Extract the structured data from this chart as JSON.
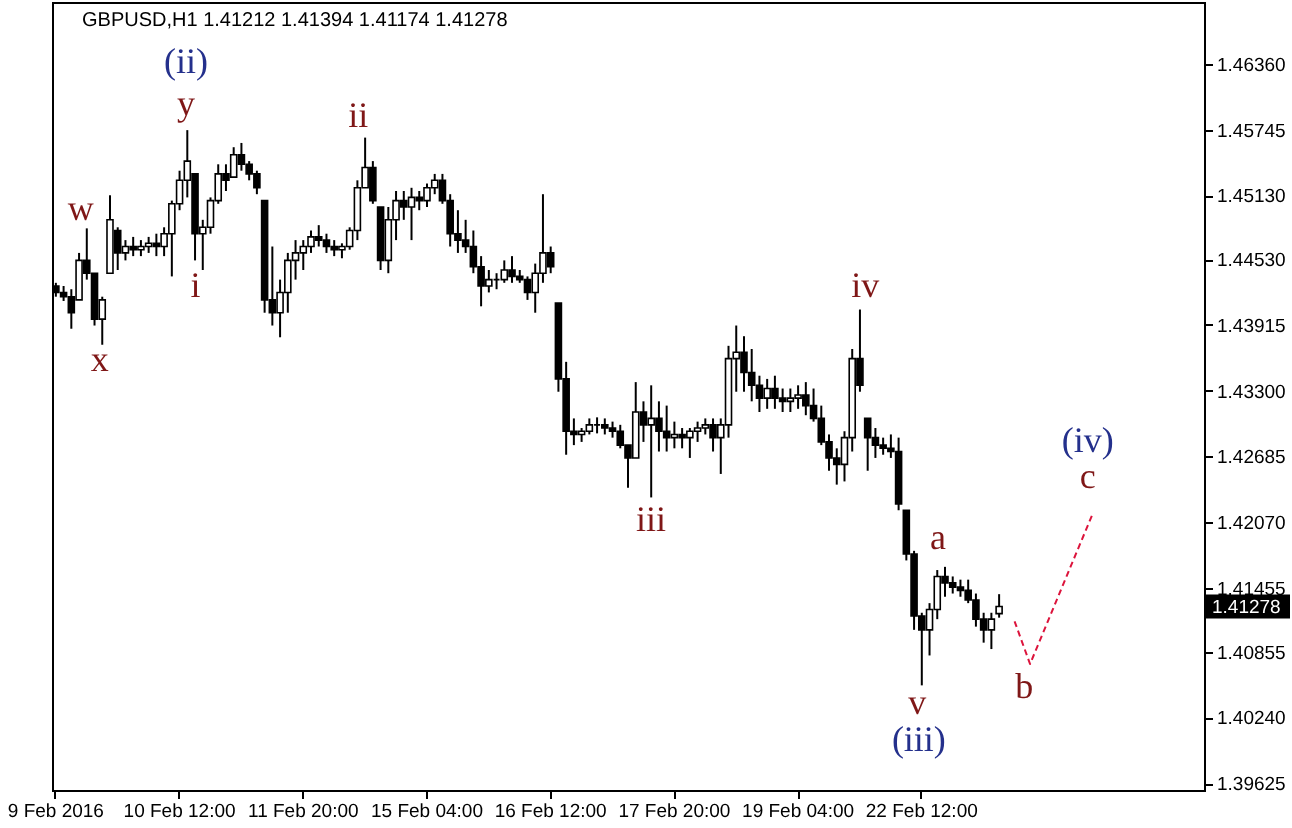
{
  "chart_data": {
    "type": "candlestick",
    "title": "GBPUSD,H1 1.41212 1.41394 1.41174 1.41278",
    "color": "#000000",
    "categories": [
      "9 Feb 2016",
      null,
      null,
      null,
      null,
      null,
      null,
      null,
      null,
      null,
      null,
      null,
      null,
      null,
      null,
      null,
      "10 Feb 12:00",
      null,
      null,
      null,
      null,
      null,
      null,
      null,
      null,
      null,
      null,
      null,
      null,
      null,
      null,
      null,
      "11 Feb 20:00",
      null,
      null,
      null,
      null,
      null,
      null,
      null,
      null,
      null,
      null,
      null,
      null,
      null,
      null,
      null,
      "15 Feb 04:00",
      null,
      null,
      null,
      null,
      null,
      null,
      null,
      null,
      null,
      null,
      null,
      null,
      null,
      null,
      null,
      "16 Feb 12:00",
      null,
      null,
      null,
      null,
      null,
      null,
      null,
      null,
      null,
      null,
      null,
      null,
      null,
      null,
      null,
      "17 Feb 20:00",
      null,
      null,
      null,
      null,
      null,
      null,
      null,
      null,
      null,
      null,
      null,
      null,
      null,
      null,
      null,
      "19 Feb 04:00",
      null,
      null,
      null,
      null,
      null,
      null,
      null,
      null,
      null,
      null,
      null,
      null,
      null,
      null,
      null,
      "22 Feb 12:00",
      null,
      null,
      null,
      null,
      null,
      null,
      null,
      null,
      null,
      null,
      null,
      null,
      null,
      null,
      null,
      null,
      null,
      null,
      null,
      null,
      null,
      null,
      null,
      null,
      null,
      null,
      null,
      null,
      null,
      null,
      null,
      null,
      null,
      null,
      null,
      null
    ],
    "ohlc": [
      [
        1.4428,
        1.4431,
        1.4418,
        1.4422
      ],
      [
        1.4422,
        1.4428,
        1.4414,
        1.4418
      ],
      [
        1.4418,
        1.4425,
        1.4388,
        1.4403
      ],
      [
        1.4415,
        1.4459,
        1.4415,
        1.4452
      ],
      [
        1.4452,
        1.4482,
        1.4434,
        1.444
      ],
      [
        1.444,
        1.444,
        1.4391,
        1.4397
      ],
      [
        1.4397,
        1.4418,
        1.4373,
        1.4415
      ],
      [
        1.444,
        1.4513,
        1.444,
        1.449
      ],
      [
        1.448,
        1.4483,
        1.4443,
        1.4459
      ],
      [
        1.4459,
        1.4471,
        1.4452,
        1.4465
      ],
      [
        1.4465,
        1.4474,
        1.4456,
        1.4462
      ],
      [
        1.4462,
        1.4471,
        1.4456,
        1.4465
      ],
      [
        1.4465,
        1.4474,
        1.4459,
        1.4468
      ],
      [
        1.4468,
        1.4477,
        1.4456,
        1.4465
      ],
      [
        1.4465,
        1.4483,
        1.4456,
        1.4477
      ],
      [
        1.4477,
        1.4508,
        1.4437,
        1.4505
      ],
      [
        1.4505,
        1.4536,
        1.4499,
        1.4527
      ],
      [
        1.4527,
        1.4574,
        1.4511,
        1.4545
      ],
      [
        1.4533,
        1.4533,
        1.4452,
        1.4477
      ],
      [
        1.4477,
        1.449,
        1.4443,
        1.4483
      ],
      [
        1.4483,
        1.4511,
        1.4477,
        1.4508
      ],
      [
        1.4508,
        1.4542,
        1.4505,
        1.4533
      ],
      [
        1.4533,
        1.4542,
        1.4517,
        1.4527
      ],
      [
        1.453,
        1.4558,
        1.453,
        1.4551
      ],
      [
        1.4551,
        1.4562,
        1.4536,
        1.4542
      ],
      [
        1.4542,
        1.4545,
        1.4527,
        1.4533
      ],
      [
        1.4533,
        1.4536,
        1.4514,
        1.452
      ],
      [
        1.4508,
        1.4508,
        1.4403,
        1.4415
      ],
      [
        1.4415,
        1.4465,
        1.4391,
        1.4403
      ],
      [
        1.4403,
        1.4434,
        1.438,
        1.4422
      ],
      [
        1.4422,
        1.4459,
        1.4403,
        1.4452
      ],
      [
        1.4452,
        1.4471,
        1.4434,
        1.4459
      ],
      [
        1.4459,
        1.4471,
        1.4443,
        1.4465
      ],
      [
        1.4465,
        1.448,
        1.4459,
        1.4474
      ],
      [
        1.4474,
        1.4485,
        1.4465,
        1.4471
      ],
      [
        1.4471,
        1.4477,
        1.4459,
        1.4465
      ],
      [
        1.4465,
        1.4471,
        1.4456,
        1.4462
      ],
      [
        1.4462,
        1.4468,
        1.4454,
        1.4465
      ],
      [
        1.4465,
        1.4483,
        1.4462,
        1.448
      ],
      [
        1.448,
        1.4527,
        1.4471,
        1.452
      ],
      [
        1.452,
        1.4567,
        1.452,
        1.4539
      ],
      [
        1.4539,
        1.4545,
        1.4505,
        1.4508
      ],
      [
        1.4502,
        1.4502,
        1.4443,
        1.4452
      ],
      [
        1.4452,
        1.4502,
        1.444,
        1.449
      ],
      [
        1.449,
        1.4517,
        1.4471,
        1.4508
      ],
      [
        1.4508,
        1.4517,
        1.449,
        1.4502
      ],
      [
        1.4502,
        1.452,
        1.4471,
        1.4511
      ],
      [
        1.4511,
        1.4517,
        1.4499,
        1.4508
      ],
      [
        1.4508,
        1.4524,
        1.4502,
        1.452
      ],
      [
        1.452,
        1.4533,
        1.4514,
        1.4527
      ],
      [
        1.4527,
        1.4533,
        1.4505,
        1.4508
      ],
      [
        1.4508,
        1.4514,
        1.4465,
        1.4477
      ],
      [
        1.4477,
        1.4499,
        1.4459,
        1.4471
      ],
      [
        1.4471,
        1.449,
        1.4459,
        1.4465
      ],
      [
        1.4465,
        1.448,
        1.444,
        1.4446
      ],
      [
        1.4446,
        1.4456,
        1.4409,
        1.4428
      ],
      [
        1.4428,
        1.4443,
        1.4422,
        1.4434
      ],
      [
        1.4434,
        1.444,
        1.4425,
        1.4434
      ],
      [
        1.4434,
        1.4452,
        1.4431,
        1.4443
      ],
      [
        1.4443,
        1.4456,
        1.4431,
        1.4437
      ],
      [
        1.4437,
        1.4443,
        1.4431,
        1.4434
      ],
      [
        1.4434,
        1.4437,
        1.4415,
        1.4422
      ],
      [
        1.4422,
        1.4449,
        1.4403,
        1.444
      ],
      [
        1.444,
        1.4514,
        1.4431,
        1.4459
      ],
      [
        1.4459,
        1.4465,
        1.444,
        1.4446
      ],
      [
        1.4412,
        1.4412,
        1.4329,
        1.4341
      ],
      [
        1.4341,
        1.4357,
        1.427,
        1.4292
      ],
      [
        1.4292,
        1.4304,
        1.4279,
        1.4289
      ],
      [
        1.4289,
        1.4295,
        1.4282,
        1.4292
      ],
      [
        1.4292,
        1.4304,
        1.4289,
        1.4298
      ],
      [
        1.4298,
        1.4305,
        1.429,
        1.4298
      ],
      [
        1.4298,
        1.4304,
        1.4289,
        1.4295
      ],
      [
        1.4295,
        1.4301,
        1.4286,
        1.4292
      ],
      [
        1.4292,
        1.4298,
        1.4276,
        1.4279
      ],
      [
        1.4279,
        1.4279,
        1.4239,
        1.4267
      ],
      [
        1.4267,
        1.4338,
        1.4267,
        1.431
      ],
      [
        1.431,
        1.432,
        1.4282,
        1.4298
      ],
      [
        1.4298,
        1.4335,
        1.423,
        1.4304
      ],
      [
        1.4304,
        1.432,
        1.4273,
        1.4292
      ],
      [
        1.4292,
        1.4316,
        1.4273,
        1.4286
      ],
      [
        1.4286,
        1.4301,
        1.4276,
        1.4289
      ],
      [
        1.4289,
        1.4295,
        1.4276,
        1.4286
      ],
      [
        1.4286,
        1.4295,
        1.4267,
        1.4292
      ],
      [
        1.4292,
        1.4301,
        1.4282,
        1.4295
      ],
      [
        1.4295,
        1.4304,
        1.4289,
        1.4298
      ],
      [
        1.4298,
        1.4304,
        1.4273,
        1.4286
      ],
      [
        1.4286,
        1.4304,
        1.4252,
        1.4298
      ],
      [
        1.4298,
        1.4372,
        1.4286,
        1.436
      ],
      [
        1.436,
        1.4391,
        1.4329,
        1.4366
      ],
      [
        1.4366,
        1.4381,
        1.4329,
        1.4347
      ],
      [
        1.4347,
        1.4369,
        1.432,
        1.4335
      ],
      [
        1.4335,
        1.4344,
        1.431,
        1.4323
      ],
      [
        1.4323,
        1.4341,
        1.4313,
        1.4332
      ],
      [
        1.4332,
        1.4344,
        1.4313,
        1.4323
      ],
      [
        1.4323,
        1.4332,
        1.431,
        1.432
      ],
      [
        1.432,
        1.4332,
        1.431,
        1.4323
      ],
      [
        1.4323,
        1.4335,
        1.4313,
        1.4326
      ],
      [
        1.4326,
        1.4338,
        1.4307,
        1.4316
      ],
      [
        1.4316,
        1.4332,
        1.4301,
        1.4304
      ],
      [
        1.4304,
        1.4316,
        1.4279,
        1.4282
      ],
      [
        1.4282,
        1.4289,
        1.4255,
        1.4267
      ],
      [
        1.4267,
        1.4276,
        1.4242,
        1.4261
      ],
      [
        1.4261,
        1.4292,
        1.4245,
        1.4286
      ],
      [
        1.4286,
        1.4369,
        1.4273,
        1.436
      ],
      [
        1.436,
        1.4406,
        1.4329,
        1.4335
      ],
      [
        1.4304,
        1.4304,
        1.4255,
        1.4286
      ],
      [
        1.4286,
        1.4295,
        1.4267,
        1.4279
      ],
      [
        1.4279,
        1.4286,
        1.427,
        1.4276
      ],
      [
        1.4276,
        1.4289,
        1.4267,
        1.4273
      ],
      [
        1.4273,
        1.4286,
        1.4218,
        1.4224
      ],
      [
        1.4218,
        1.4218,
        1.4171,
        1.4177
      ],
      [
        1.4177,
        1.418,
        1.4106,
        1.4119
      ],
      [
        1.4119,
        1.4122,
        1.4054,
        1.4106
      ],
      [
        1.4106,
        1.4131,
        1.4082,
        1.4125
      ],
      [
        1.4125,
        1.4162,
        1.4116,
        1.4156
      ],
      [
        1.4156,
        1.4165,
        1.4137,
        1.415
      ],
      [
        1.415,
        1.4156,
        1.414,
        1.4146
      ],
      [
        1.4146,
        1.4153,
        1.4137,
        1.4143
      ],
      [
        1.4143,
        1.4153,
        1.4131,
        1.4134
      ],
      [
        1.4134,
        1.414,
        1.4109,
        1.4116
      ],
      [
        1.4116,
        1.4122,
        1.4094,
        1.4106
      ],
      [
        1.4106,
        1.4122,
        1.4088,
        1.4116
      ],
      [
        1.41212,
        1.41394,
        1.41174,
        1.41278
      ],
      null,
      null,
      null,
      null,
      null,
      null,
      null,
      null,
      null,
      null,
      null,
      null,
      null,
      null,
      null,
      null,
      null,
      null,
      null,
      null,
      null,
      null,
      null,
      null,
      null,
      null
    ],
    "series": [
      {
        "type": "line",
        "color": "#dc143c",
        "line_style": "dashed",
        "values": [
          null,
          null,
          null,
          null,
          null,
          null,
          null,
          null,
          null,
          null,
          null,
          null,
          null,
          null,
          null,
          null,
          null,
          null,
          null,
          null,
          null,
          null,
          null,
          null,
          null,
          null,
          null,
          null,
          null,
          null,
          null,
          null,
          null,
          null,
          null,
          null,
          null,
          null,
          null,
          null,
          null,
          null,
          null,
          null,
          null,
          null,
          null,
          null,
          null,
          null,
          null,
          null,
          null,
          null,
          null,
          null,
          null,
          null,
          null,
          null,
          null,
          null,
          null,
          null,
          null,
          null,
          null,
          null,
          null,
          null,
          null,
          null,
          null,
          null,
          null,
          null,
          null,
          null,
          null,
          null,
          null,
          null,
          null,
          null,
          null,
          null,
          null,
          null,
          null,
          null,
          null,
          null,
          null,
          null,
          null,
          null,
          null,
          null,
          null,
          null,
          null,
          null,
          null,
          null,
          null,
          null,
          null,
          null,
          null,
          null,
          null,
          null,
          null,
          null,
          null,
          null,
          null,
          null,
          null,
          null,
          null,
          null,
          null,
          null,
          1.4114,
          null,
          1.4074,
          null,
          null,
          null,
          null,
          null,
          null,
          null,
          1.4213,
          null,
          null,
          null,
          null,
          null,
          null,
          null,
          null,
          null,
          null,
          null,
          null,
          null,
          null
        ]
      }
    ],
    "ylim": [
      1.3956,
      1.4694
    ],
    "yticks": [
      1.39625,
      {
        "value": 1.4024,
        "label": "1.40240"
      },
      1.40855,
      1.41455,
      {
        "value": 1.4207,
        "label": "1.42070"
      },
      1.42685,
      {
        "value": 1.433,
        "label": "1.43300"
      },
      1.43915,
      {
        "value": 1.4453,
        "label": "1.44530"
      },
      {
        "value": 1.4513,
        "label": "1.45130"
      },
      1.45745,
      {
        "value": 1.4636,
        "label": "1.46360"
      }
    ],
    "annotations": [
      "(ii)",
      "y",
      "w",
      "x",
      "i",
      "ii",
      "iii",
      "iv",
      "v",
      "(iii)",
      "a",
      "b",
      "c",
      "(iv)",
      "1.41278"
    ]
  }
}
